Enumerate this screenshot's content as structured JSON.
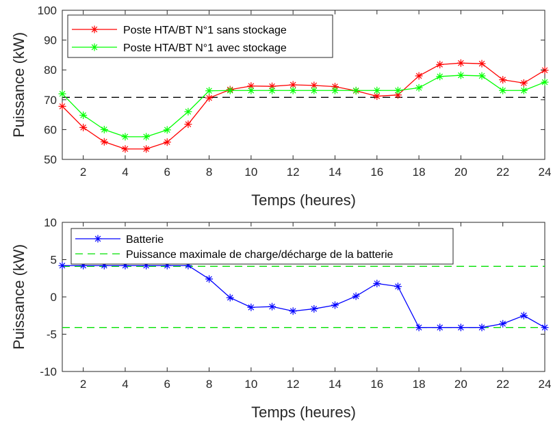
{
  "colors": {
    "sans_stockage": "#ff0000",
    "avec_stockage": "#00ff00",
    "batterie": "#0000ff",
    "limite": "#00e000",
    "seuil": "#000000"
  },
  "chart_data": [
    {
      "type": "line",
      "xlabel": "Temps (heures)",
      "ylabel": "Puissance (kW)",
      "xlim": [
        1,
        24
      ],
      "ylim": [
        50,
        100
      ],
      "xticks": [
        2,
        4,
        6,
        8,
        10,
        12,
        14,
        16,
        18,
        20,
        22,
        24
      ],
      "yticks": [
        50,
        60,
        70,
        80,
        90,
        100
      ],
      "grid": false,
      "legend_position": "top-left",
      "x": [
        1,
        2,
        3,
        4,
        5,
        6,
        7,
        8,
        9,
        10,
        11,
        12,
        13,
        14,
        15,
        16,
        17,
        18,
        19,
        20,
        21,
        22,
        23,
        24
      ],
      "series": [
        {
          "name": "Poste HTA/BT N°1 sans stockage",
          "color": "#ff0000",
          "marker": "asterisk",
          "values": [
            67.8,
            60.7,
            55.9,
            53.5,
            53.5,
            55.8,
            61.8,
            70.6,
            73.4,
            74.6,
            74.5,
            75.0,
            74.8,
            74.4,
            73.0,
            71.2,
            71.6,
            78.0,
            81.8,
            82.3,
            82.1,
            76.7,
            75.6,
            79.9
          ]
        },
        {
          "name": "Poste HTA/BT N°1 avec stockage",
          "color": "#00ff00",
          "marker": "asterisk",
          "values": [
            72.0,
            64.8,
            60.0,
            57.6,
            57.6,
            59.9,
            66.0,
            73.0,
            73.1,
            73.1,
            73.1,
            73.1,
            73.1,
            73.1,
            73.1,
            73.1,
            73.1,
            74.0,
            77.8,
            78.2,
            78.0,
            73.1,
            73.1,
            75.9
          ]
        }
      ],
      "reference_lines": [
        {
          "y": 70.8,
          "color": "#000000",
          "style": "dashed"
        }
      ]
    },
    {
      "type": "line",
      "xlabel": "Temps (heures)",
      "ylabel": "Puissance (kW)",
      "xlim": [
        1,
        24
      ],
      "ylim": [
        -10,
        10
      ],
      "xticks": [
        2,
        4,
        6,
        8,
        10,
        12,
        14,
        16,
        18,
        20,
        22,
        24
      ],
      "yticks": [
        -10,
        -5,
        0,
        5,
        10
      ],
      "grid": false,
      "legend_position": "top-left",
      "x": [
        1,
        2,
        3,
        4,
        5,
        6,
        7,
        8,
        9,
        10,
        11,
        12,
        13,
        14,
        15,
        16,
        17,
        18,
        19,
        20,
        21,
        22,
        23,
        24
      ],
      "series": [
        {
          "name": "Batterie",
          "color": "#0000ff",
          "marker": "asterisk",
          "values": [
            4.2,
            4.2,
            4.2,
            4.2,
            4.2,
            4.2,
            4.2,
            2.4,
            -0.1,
            -1.4,
            -1.3,
            -1.9,
            -1.6,
            -1.1,
            0.1,
            1.8,
            1.4,
            -4.1,
            -4.1,
            -4.1,
            -4.1,
            -3.6,
            -2.5,
            -4.1
          ]
        },
        {
          "name": "Puissance maximale de charge/décharge de la batterie",
          "color": "#00e000",
          "style": "dashed",
          "constant_lines": [
            4.1,
            -4.1
          ]
        }
      ]
    }
  ]
}
